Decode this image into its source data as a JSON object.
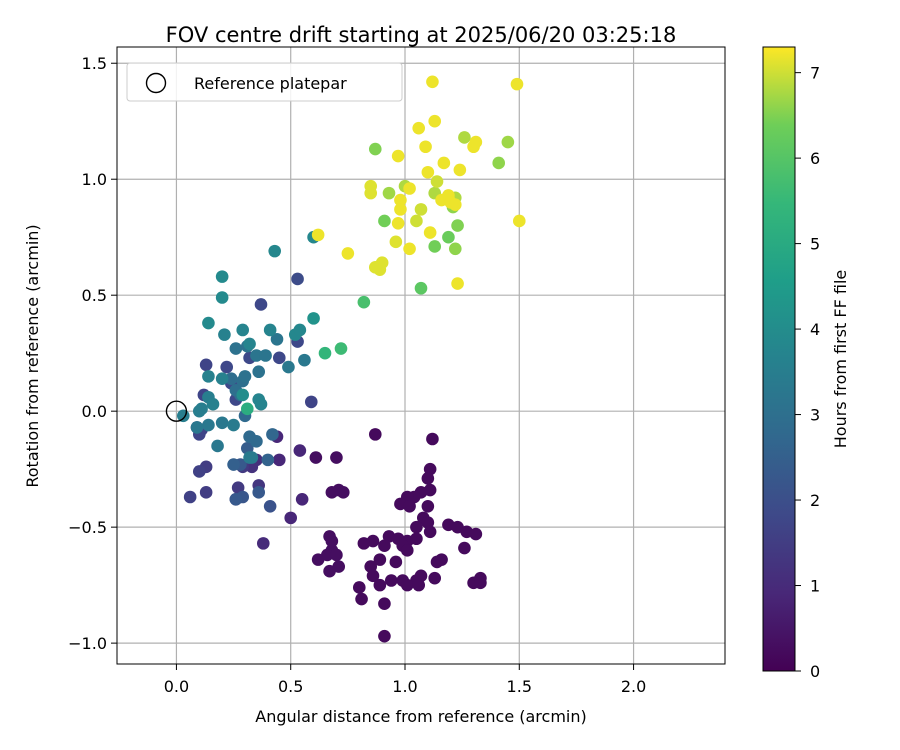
{
  "chart_data": {
    "type": "scatter",
    "title": "FOV centre drift starting at 2025/06/20 03:25:18",
    "xlabel": "Angular distance from reference (arcmin)",
    "ylabel": "Rotation from reference (arcmin)",
    "xlim": [
      -0.26,
      2.4
    ],
    "ylim": [
      -1.09,
      1.57
    ],
    "xticks": [
      0.0,
      0.5,
      1.0,
      1.5,
      2.0
    ],
    "xtick_labels": [
      "0.0",
      "0.5",
      "1.0",
      "1.5",
      "2.0"
    ],
    "yticks": [
      -1.0,
      -0.5,
      0.0,
      0.5,
      1.0,
      1.5
    ],
    "ytick_labels": [
      "−1.0",
      "−0.5",
      "0.0",
      "0.5",
      "1.0",
      "1.5"
    ],
    "grid": true,
    "legend": {
      "position": "upper-left",
      "entries": [
        "Reference platepar"
      ]
    },
    "reference_point": {
      "x": 0.0,
      "y": 0.0,
      "label": "Reference platepar"
    },
    "colorbar": {
      "label": "Hours from first FF file",
      "range": [
        0,
        7.3
      ],
      "ticks": [
        0,
        1,
        2,
        3,
        4,
        5,
        6,
        7
      ],
      "tick_labels": [
        "0",
        "1",
        "2",
        "3",
        "4",
        "5",
        "6",
        "7"
      ],
      "colormap": "viridis"
    },
    "points": [
      [
        0.87,
        -0.1,
        0.2
      ],
      [
        1.12,
        -0.12,
        0.2
      ],
      [
        1.11,
        -0.25,
        0.2
      ],
      [
        1.1,
        -0.29,
        0.2
      ],
      [
        1.11,
        -0.34,
        0.2
      ],
      [
        1.07,
        -0.35,
        0.2
      ],
      [
        1.04,
        -0.37,
        0.2
      ],
      [
        1.01,
        -0.37,
        0.2
      ],
      [
        0.98,
        -0.4,
        0.2
      ],
      [
        1.02,
        -0.41,
        0.2
      ],
      [
        1.1,
        -0.41,
        0.2
      ],
      [
        1.08,
        -0.46,
        0.2
      ],
      [
        1.1,
        -0.48,
        0.2
      ],
      [
        1.05,
        -0.5,
        0.2
      ],
      [
        1.11,
        -0.52,
        0.2
      ],
      [
        1.19,
        -0.49,
        0.2
      ],
      [
        1.23,
        -0.5,
        0.2
      ],
      [
        1.27,
        -0.52,
        0.2
      ],
      [
        1.31,
        -0.53,
        0.2
      ],
      [
        1.26,
        -0.59,
        0.2
      ],
      [
        0.93,
        -0.54,
        0.2
      ],
      [
        0.97,
        -0.55,
        0.2
      ],
      [
        1.01,
        -0.56,
        0.2
      ],
      [
        1.05,
        -0.55,
        0.2
      ],
      [
        0.99,
        -0.58,
        0.2
      ],
      [
        0.91,
        -0.58,
        0.2
      ],
      [
        0.86,
        -0.56,
        0.2
      ],
      [
        0.82,
        -0.57,
        0.2
      ],
      [
        1.01,
        -0.6,
        0.2
      ],
      [
        0.96,
        -0.65,
        0.2
      ],
      [
        0.89,
        -0.64,
        0.2
      ],
      [
        0.85,
        -0.67,
        0.2
      ],
      [
        0.86,
        -0.71,
        0.2
      ],
      [
        0.89,
        -0.75,
        0.2
      ],
      [
        0.94,
        -0.73,
        0.2
      ],
      [
        0.99,
        -0.73,
        0.2
      ],
      [
        1.05,
        -0.73,
        0.2
      ],
      [
        1.07,
        -0.71,
        0.2
      ],
      [
        1.14,
        -0.65,
        0.2
      ],
      [
        1.16,
        -0.64,
        0.2
      ],
      [
        1.13,
        -0.72,
        0.2
      ],
      [
        1.01,
        -0.75,
        0.2
      ],
      [
        1.06,
        -0.75,
        0.2
      ],
      [
        1.33,
        -0.72,
        0.2
      ],
      [
        1.3,
        -0.74,
        0.2
      ],
      [
        1.33,
        -0.74,
        0.2
      ],
      [
        0.81,
        -0.81,
        0.2
      ],
      [
        0.91,
        -0.83,
        0.2
      ],
      [
        0.91,
        -0.97,
        0.2
      ],
      [
        0.8,
        -0.76,
        0.2
      ],
      [
        0.68,
        -0.6,
        0.3
      ],
      [
        0.66,
        -0.62,
        0.3
      ],
      [
        0.7,
        -0.62,
        0.3
      ],
      [
        0.71,
        -0.67,
        0.3
      ],
      [
        0.62,
        -0.64,
        0.3
      ],
      [
        0.67,
        -0.69,
        0.3
      ],
      [
        0.68,
        -0.56,
        0.3
      ],
      [
        0.67,
        -0.54,
        0.3
      ],
      [
        0.7,
        -0.2,
        0.3
      ],
      [
        0.71,
        -0.34,
        0.3
      ],
      [
        0.73,
        -0.35,
        0.3
      ],
      [
        0.61,
        -0.2,
        0.3
      ],
      [
        0.68,
        -0.35,
        0.3
      ],
      [
        0.44,
        -0.11,
        0.9
      ],
      [
        0.45,
        -0.21,
        0.9
      ],
      [
        0.55,
        -0.38,
        0.9
      ],
      [
        0.54,
        -0.17,
        0.9
      ],
      [
        0.5,
        -0.46,
        0.9
      ],
      [
        0.38,
        -0.57,
        1.0
      ],
      [
        0.35,
        -0.21,
        1.1
      ],
      [
        0.33,
        -0.24,
        1.2
      ],
      [
        0.36,
        -0.32,
        1.3
      ],
      [
        0.27,
        -0.33,
        1.4
      ],
      [
        0.29,
        -0.24,
        1.4
      ],
      [
        0.26,
        -0.38,
        1.5
      ],
      [
        0.13,
        -0.24,
        1.5
      ],
      [
        0.13,
        -0.35,
        1.5
      ],
      [
        0.06,
        -0.37,
        1.6
      ],
      [
        0.1,
        -0.26,
        1.6
      ],
      [
        0.1,
        -0.1,
        1.7
      ],
      [
        0.11,
        -0.08,
        1.7
      ],
      [
        0.09,
        -0.07,
        1.7
      ],
      [
        0.12,
        0.07,
        1.7
      ],
      [
        0.13,
        0.2,
        1.7
      ],
      [
        0.59,
        0.04,
        1.7
      ],
      [
        0.26,
        0.05,
        1.8
      ],
      [
        0.24,
        0.12,
        1.8
      ],
      [
        0.22,
        0.19,
        1.8
      ],
      [
        0.32,
        0.23,
        1.8
      ],
      [
        0.45,
        0.23,
        1.8
      ],
      [
        0.53,
        0.3,
        1.8
      ],
      [
        0.37,
        0.46,
        1.8
      ],
      [
        0.53,
        0.57,
        1.9
      ],
      [
        0.41,
        -0.41,
        2.1
      ],
      [
        0.29,
        -0.37,
        2.2
      ],
      [
        0.26,
        -0.38,
        2.3
      ],
      [
        0.36,
        -0.35,
        2.3
      ],
      [
        0.28,
        -0.23,
        2.3
      ],
      [
        0.31,
        -0.16,
        2.4
      ],
      [
        0.25,
        -0.23,
        2.5
      ],
      [
        0.4,
        -0.21,
        2.6
      ],
      [
        0.42,
        -0.1,
        2.7
      ],
      [
        0.32,
        -0.11,
        2.8
      ],
      [
        0.35,
        -0.13,
        2.8
      ],
      [
        0.3,
        -0.02,
        2.8
      ],
      [
        0.28,
        0.07,
        2.9
      ],
      [
        0.24,
        0.14,
        2.9
      ],
      [
        0.26,
        0.09,
        3.0
      ],
      [
        0.29,
        0.13,
        3.0
      ],
      [
        0.3,
        0.15,
        3.1
      ],
      [
        0.36,
        0.17,
        3.1
      ],
      [
        0.26,
        0.27,
        3.1
      ],
      [
        0.31,
        0.28,
        3.1
      ],
      [
        0.35,
        0.24,
        3.2
      ],
      [
        0.39,
        0.24,
        3.2
      ],
      [
        0.44,
        0.31,
        3.2
      ],
      [
        0.49,
        0.19,
        3.3
      ],
      [
        0.56,
        0.22,
        3.3
      ],
      [
        0.09,
        -0.07,
        3.3
      ],
      [
        0.14,
        -0.06,
        3.3
      ],
      [
        0.2,
        -0.05,
        3.3
      ],
      [
        0.18,
        -0.15,
        3.3
      ],
      [
        0.25,
        -0.06,
        3.4
      ],
      [
        0.32,
        -0.2,
        3.4
      ],
      [
        0.33,
        -0.2,
        3.4
      ],
      [
        0.03,
        -0.02,
        3.5
      ],
      [
        0.1,
        0.0,
        3.5
      ],
      [
        0.11,
        0.01,
        3.5
      ],
      [
        0.14,
        0.06,
        3.5
      ],
      [
        0.14,
        0.15,
        3.6
      ],
      [
        0.16,
        0.03,
        3.6
      ],
      [
        0.2,
        0.14,
        3.6
      ],
      [
        0.21,
        0.33,
        3.6
      ],
      [
        0.29,
        0.35,
        3.7
      ],
      [
        0.32,
        0.29,
        3.7
      ],
      [
        0.36,
        0.05,
        3.7
      ],
      [
        0.37,
        0.03,
        3.7
      ],
      [
        0.41,
        0.35,
        3.7
      ],
      [
        0.43,
        0.69,
        3.8
      ],
      [
        0.52,
        0.33,
        3.8
      ],
      [
        0.54,
        0.35,
        3.8
      ],
      [
        0.6,
        0.75,
        3.8
      ],
      [
        0.14,
        0.38,
        3.9
      ],
      [
        0.2,
        0.49,
        3.9
      ],
      [
        0.2,
        0.58,
        3.9
      ],
      [
        0.29,
        0.07,
        4.0
      ],
      [
        0.6,
        0.4,
        4.2
      ],
      [
        0.31,
        0.01,
        5.1
      ],
      [
        0.65,
        0.25,
        5.4
      ],
      [
        0.72,
        0.27,
        5.6
      ],
      [
        0.82,
        0.47,
        5.8
      ],
      [
        1.07,
        0.53,
        6.1
      ],
      [
        1.19,
        0.75,
        6.3
      ],
      [
        0.91,
        0.82,
        6.4
      ],
      [
        1.13,
        0.71,
        6.4
      ],
      [
        1.23,
        0.8,
        6.5
      ],
      [
        0.87,
        1.13,
        6.5
      ],
      [
        1.22,
        0.7,
        6.6
      ],
      [
        1.21,
        0.88,
        6.6
      ],
      [
        1.41,
        1.07,
        6.6
      ],
      [
        1.45,
        1.16,
        6.7
      ],
      [
        0.93,
        0.94,
        6.7
      ],
      [
        1.0,
        0.97,
        6.8
      ],
      [
        1.22,
        0.92,
        6.8
      ],
      [
        1.26,
        1.18,
        6.8
      ],
      [
        1.13,
        0.94,
        6.8
      ],
      [
        1.14,
        0.99,
        7.0
      ],
      [
        1.07,
        0.87,
        7.0
      ],
      [
        1.05,
        0.82,
        7.0
      ],
      [
        0.85,
        0.97,
        7.1
      ],
      [
        0.85,
        0.94,
        7.1
      ],
      [
        0.87,
        0.62,
        7.1
      ],
      [
        0.89,
        0.61,
        7.1
      ],
      [
        0.9,
        0.64,
        7.1
      ],
      [
        0.96,
        0.73,
        7.1
      ],
      [
        0.97,
        0.81,
        7.2
      ],
      [
        0.98,
        0.87,
        7.2
      ],
      [
        0.98,
        0.91,
        7.2
      ],
      [
        0.97,
        1.1,
        7.2
      ],
      [
        1.02,
        0.7,
        7.2
      ],
      [
        1.06,
        1.22,
        7.2
      ],
      [
        1.09,
        1.14,
        7.2
      ],
      [
        1.1,
        1.03,
        7.2
      ],
      [
        1.11,
        0.77,
        7.2
      ],
      [
        1.12,
        1.42,
        7.2
      ],
      [
        1.13,
        1.25,
        7.2
      ],
      [
        1.16,
        0.91,
        7.2
      ],
      [
        1.17,
        1.07,
        7.2
      ],
      [
        1.19,
        0.93,
        7.2
      ],
      [
        1.2,
        0.9,
        7.2
      ],
      [
        1.22,
        0.89,
        7.2
      ],
      [
        1.23,
        0.55,
        7.2
      ],
      [
        1.24,
        1.04,
        7.2
      ],
      [
        1.3,
        1.14,
        7.2
      ],
      [
        1.31,
        1.16,
        7.2
      ],
      [
        1.49,
        1.41,
        7.2
      ],
      [
        1.5,
        0.82,
        7.2
      ],
      [
        0.62,
        0.76,
        7.2
      ],
      [
        0.75,
        0.68,
        7.2
      ],
      [
        1.02,
        0.96,
        7.2
      ]
    ]
  }
}
